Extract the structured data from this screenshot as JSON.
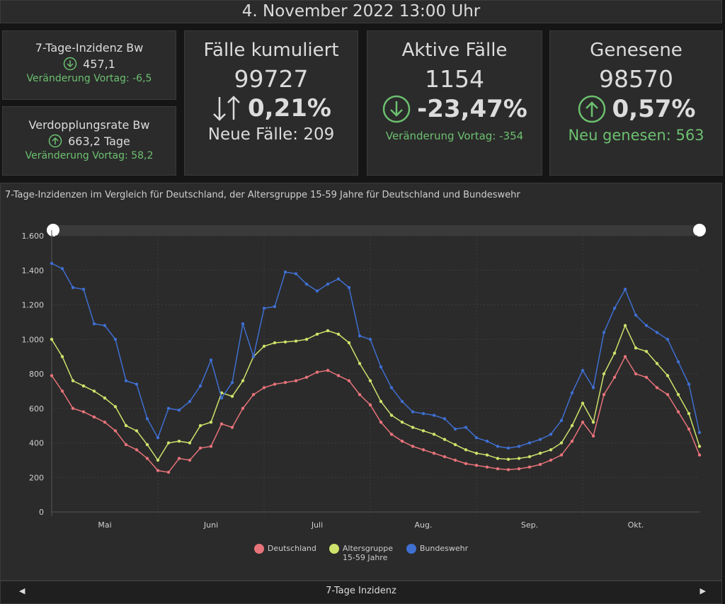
{
  "header": {
    "title": "4. November 2022 13:00 Uhr"
  },
  "small_cards": [
    {
      "title": "7-Tage-Inzidenz Bw",
      "value": "457,1",
      "change": "Veränderung Vortag: -6,5",
      "direction": "down"
    },
    {
      "title": "Verdopplungsrate Bw",
      "value": "663,2 Tage",
      "change": "Veränderung Vortag: 58,2",
      "direction": "up"
    }
  ],
  "big_cards": [
    {
      "title": "Fälle kumuliert",
      "value": "99727",
      "percent": "0,21%",
      "detail": "Neue Fälle: 209",
      "direction": "both"
    },
    {
      "title": "Aktive Fälle",
      "value": "1154",
      "percent": "-23,47%",
      "detail": "Veränderung Vortag: -354",
      "direction": "down"
    },
    {
      "title": "Genesene",
      "value": "98570",
      "percent": "0,57%",
      "detail": "Neu genesen: 563",
      "direction": "up"
    }
  ],
  "chart_data": {
    "type": "line",
    "title": "7-Tage-Inzidenzen im Vergleich für Deutschland, der Altersgruppe 15-59 Jahre für Deutschland und Bundeswehr",
    "categories": [
      null,
      null,
      null,
      null,
      null,
      "Mai",
      null,
      null,
      null,
      null,
      null,
      null,
      null,
      null,
      null,
      "Juni",
      null,
      null,
      null,
      null,
      null,
      null,
      null,
      null,
      null,
      "Juli",
      null,
      null,
      null,
      null,
      null,
      null,
      null,
      null,
      null,
      "Aug.",
      null,
      null,
      null,
      null,
      null,
      null,
      null,
      null,
      null,
      "Sep.",
      null,
      null,
      null,
      null,
      null,
      null,
      null,
      null,
      null,
      "Okt.",
      null,
      null,
      null,
      null,
      null,
      null
    ],
    "series": [
      {
        "name": "Deutschland",
        "color": "#e8737a",
        "values": [
          790,
          700,
          600,
          580,
          550,
          520,
          470,
          390,
          360,
          310,
          240,
          230,
          310,
          300,
          370,
          380,
          510,
          490,
          600,
          680,
          720,
          740,
          750,
          760,
          780,
          810,
          820,
          790,
          760,
          680,
          620,
          520,
          450,
          410,
          380,
          360,
          340,
          320,
          300,
          280,
          270,
          260,
          250,
          245,
          250,
          260,
          275,
          300,
          330,
          410,
          520,
          440,
          680,
          780,
          900,
          800,
          780,
          720,
          680,
          580,
          480,
          330
        ]
      },
      {
        "name": "Altersgruppe 15-59 Jahre",
        "color": "#cde36b",
        "values": [
          1000,
          900,
          760,
          730,
          700,
          660,
          610,
          500,
          470,
          390,
          300,
          400,
          410,
          400,
          500,
          520,
          690,
          670,
          760,
          900,
          960,
          980,
          985,
          990,
          1000,
          1030,
          1050,
          1030,
          980,
          860,
          760,
          640,
          560,
          520,
          490,
          470,
          450,
          420,
          390,
          360,
          340,
          330,
          310,
          305,
          310,
          320,
          340,
          360,
          400,
          500,
          630,
          520,
          800,
          920,
          1080,
          950,
          930,
          860,
          790,
          680,
          570,
          380
        ]
      },
      {
        "name": "Bundeswehr",
        "color": "#3f6fd1",
        "values": [
          1440,
          1410,
          1300,
          1290,
          1090,
          1080,
          1000,
          760,
          740,
          540,
          430,
          600,
          590,
          640,
          730,
          880,
          660,
          750,
          1090,
          900,
          1180,
          1190,
          1390,
          1380,
          1320,
          1280,
          1320,
          1350,
          1300,
          1020,
          1000,
          840,
          720,
          640,
          580,
          570,
          560,
          540,
          480,
          490,
          430,
          410,
          380,
          370,
          380,
          400,
          420,
          450,
          530,
          690,
          820,
          720,
          1040,
          1180,
          1290,
          1140,
          1080,
          1040,
          1000,
          870,
          740,
          460
        ]
      }
    ],
    "ylim": [
      0,
      1600
    ],
    "yticks": [
      0,
      200,
      400,
      600,
      800,
      {
        "value": 1000,
        "label": "1.000"
      },
      {
        "value": 1200,
        "label": "1.200"
      },
      {
        "value": 1400,
        "label": "1.400"
      },
      {
        "value": 1600,
        "label": "1.600"
      }
    ],
    "grid": true,
    "legend": "bottom"
  },
  "footer": {
    "label": "7-Tage Inzidenz"
  }
}
